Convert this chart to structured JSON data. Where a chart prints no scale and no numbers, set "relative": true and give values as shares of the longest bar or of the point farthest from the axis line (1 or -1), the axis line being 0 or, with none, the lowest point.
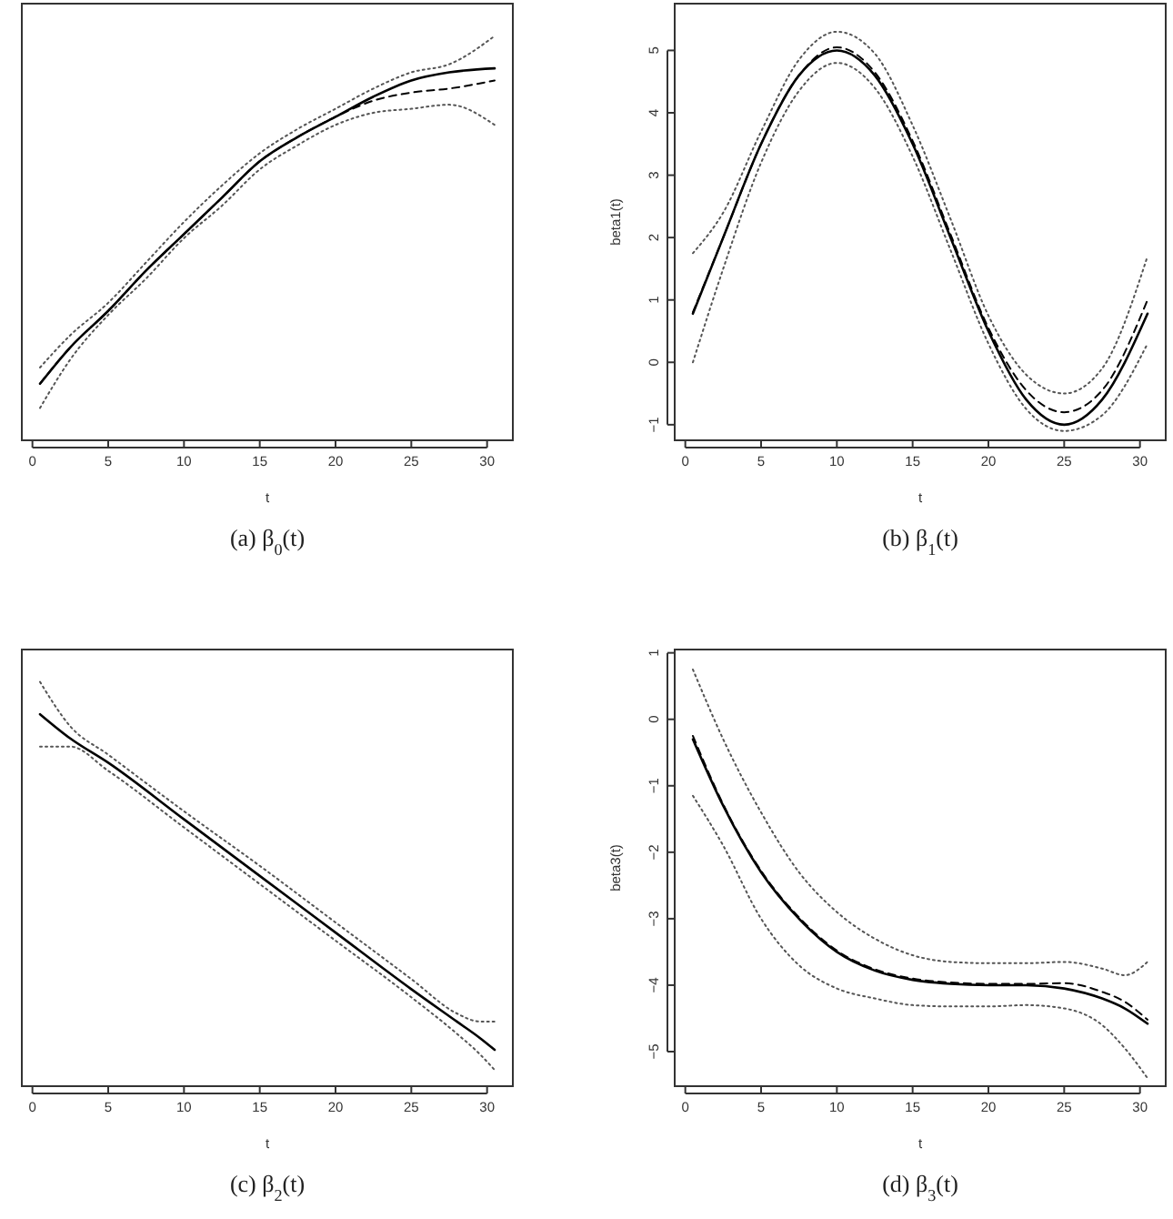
{
  "chart_data": [
    {
      "type": "line",
      "title": "(a) β$_{0}$(t)",
      "xlabel": "t",
      "relative": true,
      "xlim": [
        -0.7,
        31.7
      ],
      "xticks": [
        0,
        5,
        10,
        15,
        20,
        25,
        30
      ],
      "x": [
        0.5,
        2.5,
        5,
        7.5,
        10,
        12.5,
        15,
        17.5,
        20,
        22.5,
        25,
        27.5,
        30.5
      ],
      "series": [
        {
          "color": "#000000",
          "line_style": "solid",
          "values": [
            0.14,
            0.23,
            0.32,
            0.42,
            0.51,
            0.6,
            0.69,
            0.75,
            0.8,
            0.85,
            0.89,
            0.91,
            0.92
          ]
        },
        {
          "color": "#000000",
          "line_style": "dashed",
          "values": [
            0.14,
            0.23,
            0.32,
            0.42,
            0.51,
            0.6,
            0.69,
            0.75,
            0.8,
            0.84,
            0.86,
            0.87,
            0.89
          ]
        },
        {
          "color": "#555555",
          "line_style": "dotted",
          "values": [
            0.18,
            0.26,
            0.34,
            0.44,
            0.54,
            0.63,
            0.71,
            0.77,
            0.82,
            0.87,
            0.91,
            0.93,
            1.0
          ]
        },
        {
          "color": "#555555",
          "line_style": "dotted",
          "values": [
            0.08,
            0.2,
            0.31,
            0.4,
            0.5,
            0.58,
            0.67,
            0.73,
            0.78,
            0.81,
            0.82,
            0.83,
            0.78
          ]
        }
      ]
    },
    {
      "type": "line",
      "title": "(b) β$_{1}$(t)",
      "xlabel": "t",
      "ylabel": "beta1(t)",
      "xlim": [
        -0.7,
        31.7
      ],
      "xticks": [
        0,
        5,
        10,
        15,
        20,
        25,
        30
      ],
      "ylim": [
        -1.25,
        5.75
      ],
      "yticks": [
        -1,
        0,
        1,
        2,
        3,
        4,
        5
      ],
      "x": [
        0.5,
        2.5,
        5,
        7.5,
        10,
        12.5,
        15,
        17.5,
        20,
        22.5,
        25,
        27.5,
        30.5
      ],
      "series": [
        {
          "color": "#000000",
          "line_style": "solid",
          "values": [
            0.78,
            2.0,
            3.5,
            4.6,
            5.0,
            4.6,
            3.5,
            2.0,
            0.5,
            -0.6,
            -1.0,
            -0.6,
            0.78
          ]
        },
        {
          "color": "#000000",
          "line_style": "dashed",
          "values": [
            0.8,
            2.0,
            3.5,
            4.6,
            5.05,
            4.65,
            3.55,
            2.05,
            0.55,
            -0.45,
            -0.8,
            -0.45,
            1.0
          ]
        },
        {
          "color": "#555555",
          "line_style": "dotted",
          "values": [
            1.75,
            2.4,
            3.7,
            4.85,
            5.3,
            4.95,
            3.8,
            2.3,
            0.75,
            -0.2,
            -0.5,
            -0.1,
            1.7
          ]
        },
        {
          "color": "#555555",
          "line_style": "dotted",
          "values": [
            0.0,
            1.5,
            3.2,
            4.35,
            4.8,
            4.4,
            3.3,
            1.8,
            0.3,
            -0.75,
            -1.1,
            -0.85,
            0.3
          ]
        }
      ]
    },
    {
      "type": "line",
      "title": "(c) β$_{2}$(t)",
      "xlabel": "t",
      "relative": true,
      "xlim": [
        -0.7,
        31.7
      ],
      "xticks": [
        0,
        5,
        10,
        15,
        20,
        25,
        30
      ],
      "x": [
        0.5,
        2.5,
        5,
        10,
        15,
        20,
        25,
        28,
        29.5,
        30.5
      ],
      "series": [
        {
          "color": "#000000",
          "line_style": "solid",
          "values": [
            0.92,
            0.86,
            0.8,
            0.66,
            0.52,
            0.38,
            0.24,
            0.16,
            0.12,
            0.09
          ]
        },
        {
          "color": "#555555",
          "line_style": "dotted",
          "values": [
            1.0,
            0.89,
            0.82,
            0.68,
            0.545,
            0.405,
            0.265,
            0.18,
            0.16,
            0.16
          ]
        },
        {
          "color": "#555555",
          "line_style": "dotted",
          "values": [
            0.84,
            0.84,
            0.78,
            0.64,
            0.5,
            0.36,
            0.22,
            0.13,
            0.08,
            0.04
          ]
        }
      ]
    },
    {
      "type": "line",
      "title": "(d) β$_{3}$(t)",
      "xlabel": "t",
      "ylabel": "beta3(t)",
      "xlim": [
        -0.7,
        31.7
      ],
      "xticks": [
        0,
        5,
        10,
        15,
        20,
        25,
        30
      ],
      "ylim": [
        -5.52,
        1.05
      ],
      "yticks": [
        -5,
        -4,
        -3,
        -2,
        -1,
        0,
        1
      ],
      "x": [
        0.5,
        2.5,
        5,
        7.5,
        10,
        12.5,
        15,
        17.5,
        20,
        22.5,
        25,
        27.5,
        29,
        30.5
      ],
      "series": [
        {
          "color": "#000000",
          "line_style": "solid",
          "values": [
            -0.3,
            -1.3,
            -2.3,
            -3.0,
            -3.5,
            -3.78,
            -3.92,
            -3.98,
            -4.0,
            -4.0,
            -4.05,
            -4.2,
            -4.35,
            -4.58
          ]
        },
        {
          "color": "#000000",
          "line_style": "dashed",
          "values": [
            -0.25,
            -1.28,
            -2.28,
            -2.98,
            -3.48,
            -3.76,
            -3.9,
            -3.96,
            -3.98,
            -3.98,
            -3.97,
            -4.1,
            -4.25,
            -4.52
          ]
        },
        {
          "color": "#555555",
          "line_style": "dotted",
          "values": [
            0.75,
            -0.3,
            -1.4,
            -2.3,
            -2.9,
            -3.3,
            -3.55,
            -3.65,
            -3.67,
            -3.67,
            -3.65,
            -3.75,
            -3.85,
            -3.65
          ]
        },
        {
          "color": "#555555",
          "line_style": "dotted",
          "values": [
            -1.15,
            -1.9,
            -3.0,
            -3.7,
            -4.05,
            -4.2,
            -4.3,
            -4.32,
            -4.32,
            -4.3,
            -4.35,
            -4.6,
            -4.95,
            -5.4
          ]
        }
      ]
    }
  ]
}
